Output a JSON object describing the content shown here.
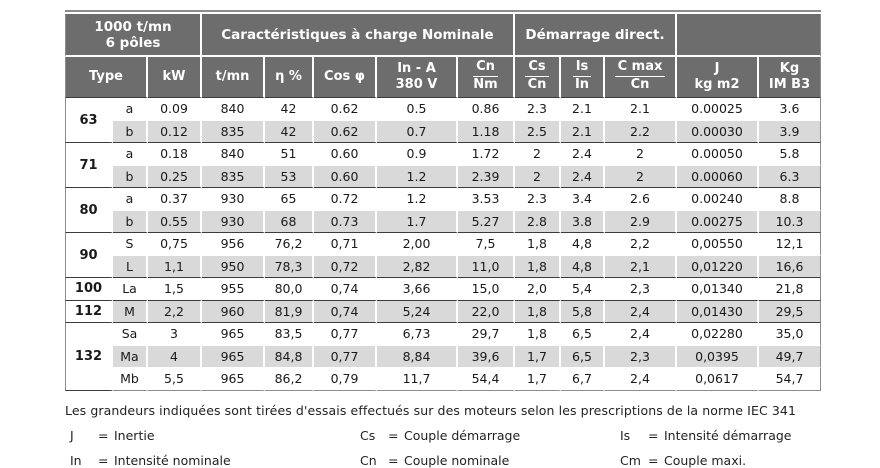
{
  "colors": {
    "header_bg": "#6d6d6d",
    "row_alt": "#d9d9d9",
    "line_dark": "#3c3c3c",
    "line_outer": "#8c8c8c",
    "text_dark": "#1a1a1a"
  },
  "table": {
    "speed_title": {
      "line1": "1000 t/mn",
      "line2": "6 pôles"
    },
    "group_nominal": "Caractéristiques à charge Nominale",
    "group_start": "Démarrage direct.",
    "columns": {
      "type": "Type",
      "kw": "kW",
      "tmn": "t/mn",
      "eta": "η %",
      "cos": "Cos φ",
      "in_a": {
        "line1": "In - A",
        "line2": "380 V"
      },
      "cn_nm": {
        "top": "Cn",
        "bottom": "Nm"
      },
      "cs_cn": {
        "top": "Cs",
        "bottom": "Cn"
      },
      "is_in": {
        "top": "Is",
        "bottom": "In"
      },
      "cmax_cn": {
        "top": "C max",
        "bottom": "Cn"
      },
      "j": {
        "line1": "J",
        "line2": "kg m2"
      },
      "kg": {
        "line1": "Kg",
        "line2": "IM B3"
      }
    },
    "groups": [
      {
        "type": "63",
        "rows": [
          {
            "variant": "a",
            "values": [
              "0.09",
              "840",
              "42",
              "0.62",
              "0.5",
              "0.86",
              "2.3",
              "2.1",
              "2.1",
              "0.00025",
              "3.6"
            ]
          },
          {
            "variant": "b",
            "values": [
              "0.12",
              "835",
              "42",
              "0.62",
              "0.7",
              "1.18",
              "2.5",
              "2.1",
              "2.2",
              "0.00030",
              "3.9"
            ]
          }
        ]
      },
      {
        "type": "71",
        "rows": [
          {
            "variant": "a",
            "values": [
              "0.18",
              "840",
              "51",
              "0.60",
              "0.9",
              "1.72",
              "2",
              "2.4",
              "2",
              "0.00050",
              "5.8"
            ]
          },
          {
            "variant": "b",
            "values": [
              "0.25",
              "835",
              "53",
              "0.60",
              "1.2",
              "2.39",
              "2",
              "2.4",
              "2",
              "0.00060",
              "6.3"
            ]
          }
        ]
      },
      {
        "type": "80",
        "rows": [
          {
            "variant": "a",
            "values": [
              "0.37",
              "930",
              "65",
              "0.72",
              "1.2",
              "3.53",
              "2.3",
              "3.4",
              "2.6",
              "0.00240",
              "8.8"
            ]
          },
          {
            "variant": "b",
            "values": [
              "0.55",
              "930",
              "68",
              "0.73",
              "1.7",
              "5.27",
              "2.8",
              "3.8",
              "2.9",
              "0.00275",
              "10.3"
            ]
          }
        ]
      },
      {
        "type": "90",
        "rows": [
          {
            "variant": "S",
            "values": [
              "0,75",
              "956",
              "76,2",
              "0,71",
              "2,00",
              "7,5",
              "1,8",
              "4,8",
              "2,2",
              "0,00550",
              "12,1"
            ]
          },
          {
            "variant": "L",
            "values": [
              "1,1",
              "950",
              "78,3",
              "0,72",
              "2,82",
              "11,0",
              "1,8",
              "4,8",
              "2,1",
              "0,01220",
              "16,6"
            ]
          }
        ]
      },
      {
        "type": "100",
        "rows": [
          {
            "variant": "La",
            "values": [
              "1,5",
              "955",
              "80,0",
              "0,74",
              "3,66",
              "15,0",
              "2,0",
              "5,4",
              "2,3",
              "0,01340",
              "21,8"
            ]
          }
        ]
      },
      {
        "type": "112",
        "rows": [
          {
            "variant": "M",
            "values": [
              "2,2",
              "960",
              "81,9",
              "0,74",
              "5,24",
              "22,0",
              "1,8",
              "5,8",
              "2,4",
              "0,01430",
              "29,5"
            ]
          }
        ]
      },
      {
        "type": "132",
        "rows": [
          {
            "variant": "Sa",
            "values": [
              "3",
              "965",
              "83,5",
              "0,77",
              "6,73",
              "29,7",
              "1,8",
              "6,5",
              "2,4",
              "0,02280",
              "35,0"
            ]
          },
          {
            "variant": "Ma",
            "values": [
              "4",
              "965",
              "84,8",
              "0,77",
              "8,84",
              "39,6",
              "1,7",
              "6,5",
              "2,3",
              "0,0395",
              "49,7"
            ]
          },
          {
            "variant": "Mb",
            "values": [
              "5,5",
              "965",
              "86,2",
              "0,79",
              "11,7",
              "54,4",
              "1,7",
              "6,7",
              "2,4",
              "0,0617",
              "54,7"
            ]
          }
        ]
      }
    ]
  },
  "footer": {
    "note": "Les grandeurs indiquées sont tirées d'essais effectués sur des moteurs selon les prescriptions de la norme IEC 341",
    "equals": "=",
    "legend": [
      {
        "symbol": "J",
        "desc": "Inertie"
      },
      {
        "symbol": "Cs",
        "desc": "Couple démarrage"
      },
      {
        "symbol": "Is",
        "desc": "Intensité démarrage"
      },
      {
        "symbol": "In",
        "desc": "Intensité nominale"
      },
      {
        "symbol": "Cn",
        "desc": "Couple nominale"
      },
      {
        "symbol": "Cm",
        "desc": "Couple maxi."
      }
    ]
  }
}
